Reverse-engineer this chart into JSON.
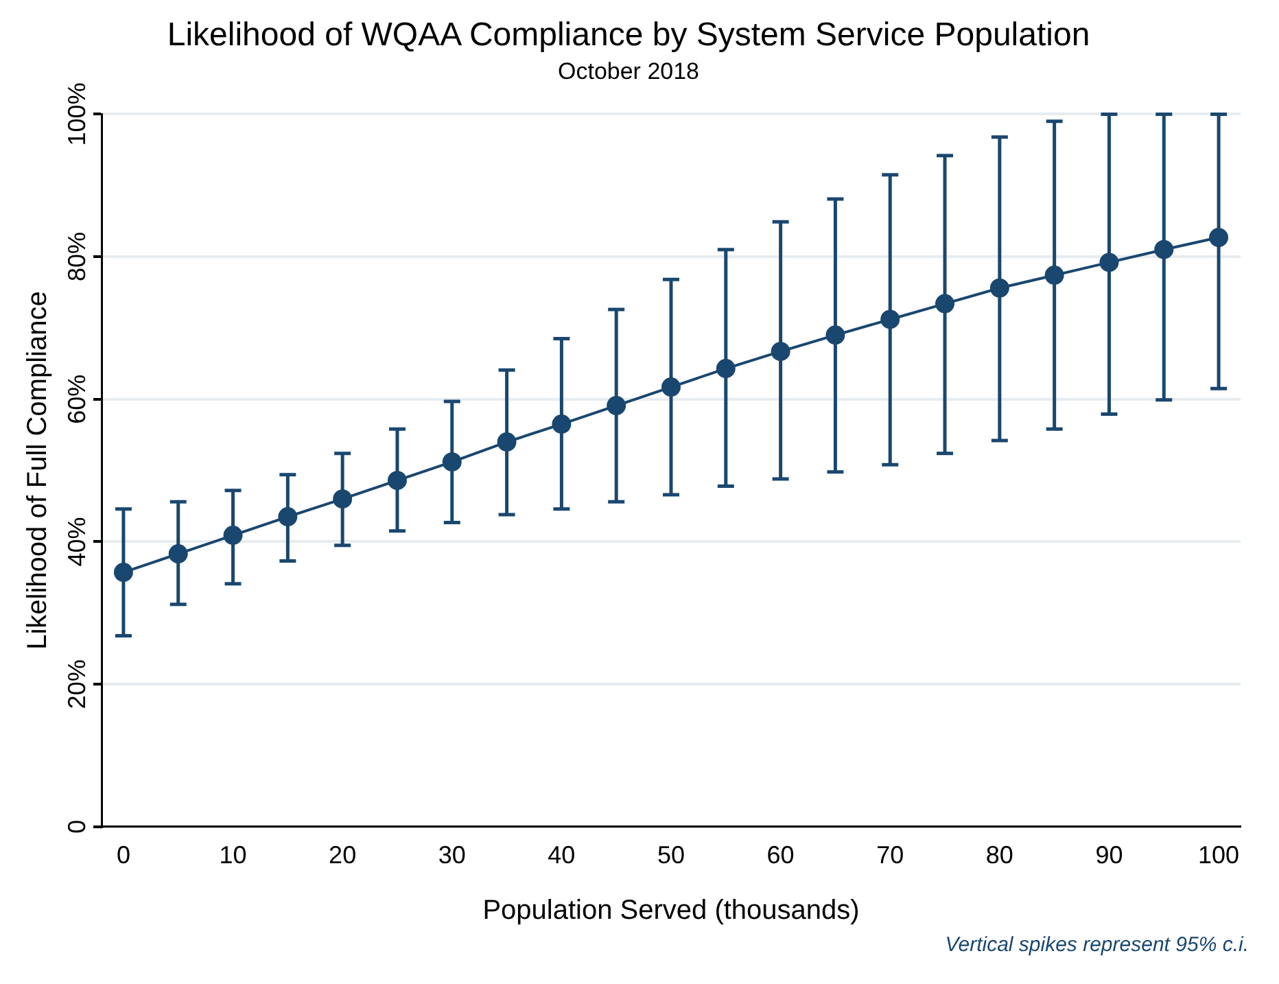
{
  "chart_data": {
    "type": "line",
    "title": "Likelihood of WQAA Compliance by System Service Population",
    "subtitle": "October 2018",
    "xlabel": "Population Served (thousands)",
    "ylabel": "Likelihood of Full Compliance",
    "annotations": [
      "Vertical spikes represent 95% c.i."
    ],
    "x": [
      0,
      5,
      10,
      15,
      20,
      25,
      30,
      35,
      40,
      45,
      50,
      55,
      60,
      65,
      70,
      75,
      80,
      85,
      90,
      95,
      100
    ],
    "series": [
      {
        "color": "#1a476f",
        "values": [
          35.7,
          38.3,
          40.9,
          43.5,
          46.0,
          48.6,
          51.2,
          54.0,
          56.5,
          59.1,
          61.7,
          64.3,
          66.7,
          69.0,
          71.2,
          73.4,
          75.6,
          77.4,
          79.2,
          81.0,
          82.7
        ],
        "errors": [
          [
            26.8,
            44.6
          ],
          [
            31.2,
            45.6
          ],
          [
            34.1,
            47.2
          ],
          [
            37.3,
            49.4
          ],
          [
            39.5,
            52.4
          ],
          [
            41.5,
            55.8
          ],
          [
            42.7,
            59.7
          ],
          [
            43.8,
            64.1
          ],
          [
            44.6,
            68.5
          ],
          [
            45.6,
            72.6
          ],
          [
            46.6,
            76.8
          ],
          [
            47.8,
            81.0
          ],
          [
            48.8,
            84.9
          ],
          [
            49.8,
            88.1
          ],
          [
            50.8,
            91.5
          ],
          [
            52.4,
            94.2
          ],
          [
            54.2,
            96.8
          ],
          [
            55.8,
            99.0
          ],
          [
            57.9,
            100
          ],
          [
            59.9,
            100
          ],
          [
            61.5,
            100
          ]
        ]
      }
    ],
    "xlim": [
      -2,
      102
    ],
    "xticks": [
      0,
      10,
      20,
      30,
      40,
      50,
      60,
      70,
      80,
      90,
      100
    ],
    "ylim": [
      0,
      100
    ],
    "yticks": [
      {
        "value": 0,
        "label": "0"
      },
      {
        "value": 20,
        "label": "20%"
      },
      {
        "value": 40,
        "label": "40%"
      },
      {
        "value": 60,
        "label": "60%"
      },
      {
        "value": 80,
        "label": "80%"
      },
      {
        "value": 100,
        "label": "100%"
      }
    ],
    "grid": "y",
    "legend": false,
    "marker": "circle",
    "line_style": "solid"
  }
}
